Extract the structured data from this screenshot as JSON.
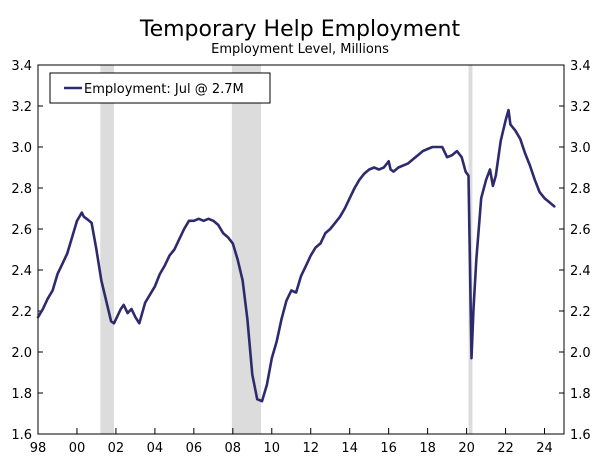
{
  "chart_data": {
    "type": "line",
    "title": "Temporary Help Employment",
    "subtitle": "Employment Level, Millions",
    "xlabel": "",
    "ylabel": "",
    "ylim": [
      1.6,
      3.4
    ],
    "yticks": [
      "1.6",
      "1.8",
      "2.0",
      "2.2",
      "2.4",
      "2.6",
      "2.8",
      "3.0",
      "3.2",
      "3.4"
    ],
    "xlim": [
      1998.0,
      2025.0
    ],
    "xticks": [
      {
        "year": 1998,
        "label": "98"
      },
      {
        "year": 2000,
        "label": "00"
      },
      {
        "year": 2002,
        "label": "02"
      },
      {
        "year": 2004,
        "label": "04"
      },
      {
        "year": 2006,
        "label": "06"
      },
      {
        "year": 2008,
        "label": "08"
      },
      {
        "year": 2010,
        "label": "10"
      },
      {
        "year": 2012,
        "label": "12"
      },
      {
        "year": 2014,
        "label": "14"
      },
      {
        "year": 2016,
        "label": "16"
      },
      {
        "year": 2018,
        "label": "18"
      },
      {
        "year": 2020,
        "label": "20"
      },
      {
        "year": 2022,
        "label": "22"
      },
      {
        "year": 2024,
        "label": "24"
      }
    ],
    "grid": false,
    "legend": {
      "placement": "top-left",
      "entries": [
        "Employment: Jul @ 2.7M"
      ]
    },
    "recessions": [
      {
        "start": 2001.2,
        "end": 2001.9
      },
      {
        "start": 2007.95,
        "end": 2009.45
      },
      {
        "start": 2020.1,
        "end": 2020.3
      }
    ],
    "series": [
      {
        "color": "#2e2a6e",
        "x": [
          1998.0,
          1998.25,
          1998.5,
          1998.75,
          1999.0,
          1999.25,
          1999.5,
          1999.75,
          2000.0,
          2000.25,
          2000.35,
          2000.5,
          2000.75,
          2001.0,
          2001.25,
          2001.5,
          2001.75,
          2001.9,
          2002.25,
          2002.4,
          2002.6,
          2002.8,
          2003.0,
          2003.2,
          2003.5,
          2003.75,
          2004.0,
          2004.25,
          2004.5,
          2004.75,
          2005.0,
          2005.25,
          2005.5,
          2005.75,
          2006.0,
          2006.25,
          2006.5,
          2006.75,
          2007.0,
          2007.25,
          2007.5,
          2007.75,
          2008.0,
          2008.25,
          2008.5,
          2008.75,
          2009.0,
          2009.25,
          2009.5,
          2009.75,
          2010.0,
          2010.25,
          2010.5,
          2010.75,
          2011.0,
          2011.25,
          2011.5,
          2011.75,
          2012.0,
          2012.25,
          2012.5,
          2012.75,
          2013.0,
          2013.25,
          2013.5,
          2013.75,
          2014.0,
          2014.25,
          2014.5,
          2014.75,
          2015.0,
          2015.25,
          2015.5,
          2015.75,
          2016.0,
          2016.1,
          2016.25,
          2016.5,
          2016.75,
          2017.0,
          2017.25,
          2017.5,
          2017.75,
          2018.0,
          2018.25,
          2018.5,
          2018.75,
          2019.0,
          2019.25,
          2019.5,
          2019.75,
          2019.95,
          2020.1,
          2020.25,
          2020.35,
          2020.5,
          2020.75,
          2021.0,
          2021.2,
          2021.35,
          2021.5,
          2021.75,
          2022.0,
          2022.15,
          2022.25,
          2022.5,
          2022.75,
          2023.0,
          2023.25,
          2023.5,
          2023.75,
          2024.0,
          2024.25,
          2024.5
        ],
        "values": [
          2.17,
          2.21,
          2.26,
          2.3,
          2.38,
          2.43,
          2.48,
          2.56,
          2.64,
          2.68,
          2.66,
          2.65,
          2.63,
          2.5,
          2.35,
          2.25,
          2.15,
          2.14,
          2.21,
          2.23,
          2.19,
          2.21,
          2.17,
          2.14,
          2.24,
          2.28,
          2.32,
          2.38,
          2.42,
          2.47,
          2.5,
          2.55,
          2.6,
          2.64,
          2.64,
          2.65,
          2.64,
          2.65,
          2.64,
          2.62,
          2.58,
          2.56,
          2.53,
          2.45,
          2.35,
          2.16,
          1.89,
          1.77,
          1.76,
          1.84,
          1.97,
          2.05,
          2.16,
          2.25,
          2.3,
          2.29,
          2.37,
          2.42,
          2.47,
          2.51,
          2.53,
          2.58,
          2.6,
          2.63,
          2.66,
          2.7,
          2.75,
          2.8,
          2.84,
          2.87,
          2.89,
          2.9,
          2.89,
          2.9,
          2.93,
          2.89,
          2.88,
          2.9,
          2.91,
          2.92,
          2.94,
          2.96,
          2.98,
          2.99,
          3.0,
          3.0,
          3.0,
          2.95,
          2.96,
          2.98,
          2.95,
          2.88,
          2.86,
          1.97,
          2.2,
          2.45,
          2.75,
          2.84,
          2.89,
          2.81,
          2.86,
          3.03,
          3.13,
          3.18,
          3.11,
          3.08,
          3.04,
          2.97,
          2.91,
          2.84,
          2.78,
          2.75,
          2.73,
          2.71
        ]
      }
    ]
  }
}
